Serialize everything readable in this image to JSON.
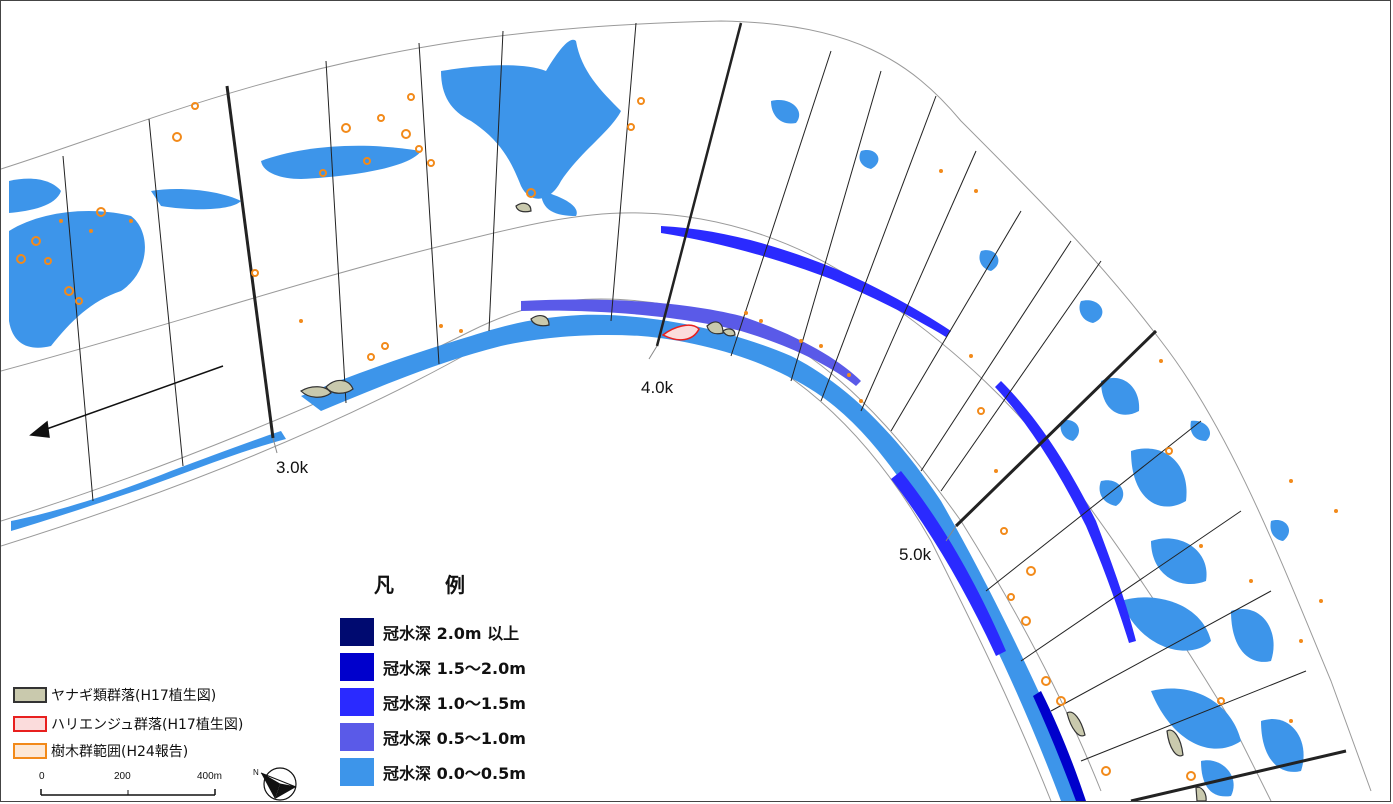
{
  "map": {
    "km_markers": [
      {
        "label": "3.0k"
      },
      {
        "label": "4.0k"
      },
      {
        "label": "5.0k"
      }
    ],
    "flow_arrow": "arrow-left-down-icon",
    "colors": {
      "river_outline": "#9a9a9a",
      "section_line": "#222222",
      "flood_shallow": "#3d95ea",
      "flood_mid": "#5555ff",
      "flood_deep": "#0000cc",
      "tree_outline": "#f28a1a",
      "willow_fill": "#c9c9ad",
      "robinia_outline": "#e8201f"
    }
  },
  "legend": {
    "title": "凡 例",
    "depth_items": [
      {
        "label": "冠水深 2.0m 以上",
        "color": "#000a70"
      },
      {
        "label": "冠水深 1.5～2.0m",
        "color": "#0000cc"
      },
      {
        "label": "冠水深 1.0～1.5m",
        "color": "#2a2aff"
      },
      {
        "label": "冠水深 0.5～1.0m",
        "color": "#5a5ae8"
      },
      {
        "label": "冠水深 0.0～0.5m",
        "color": "#3d95ea"
      }
    ],
    "vegetation_items": [
      {
        "label": "ヤナギ類群落(H17植生図)",
        "fill": "#c9c9ad",
        "stroke": "#333333"
      },
      {
        "label": "ハリエンジュ群落(H17植生図)",
        "fill": "#fbdcdc",
        "stroke": "#e8201f"
      },
      {
        "label": "樹木群範囲(H24報告)",
        "fill": "#fde8d6",
        "stroke": "#f28a1a"
      }
    ]
  },
  "scale": {
    "ticks": [
      "0",
      "200",
      "400m"
    ]
  },
  "north": {
    "label": "N",
    "icon": "north-arrow-icon"
  }
}
